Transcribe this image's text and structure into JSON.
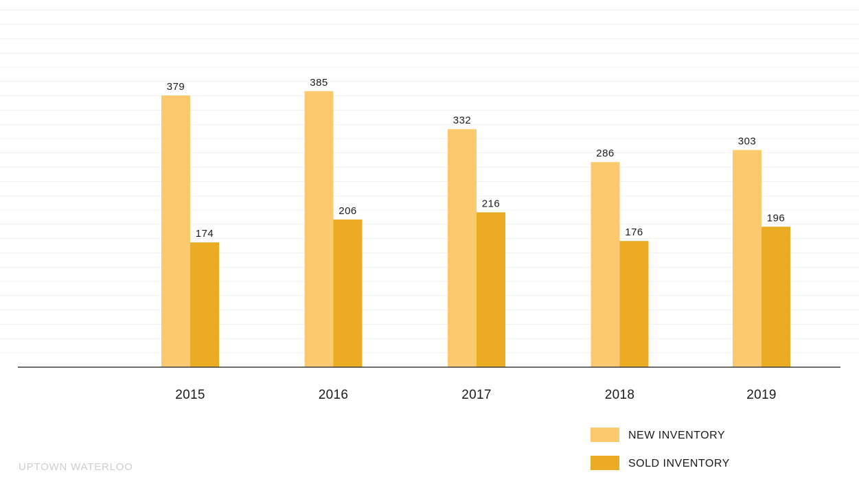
{
  "chart_data": {
    "type": "bar",
    "categories": [
      "2015",
      "2016",
      "2017",
      "2018",
      "2019"
    ],
    "series": [
      {
        "name": "NEW INVENTORY",
        "values": [
          379,
          385,
          332,
          286,
          303
        ],
        "color": "#fdc96f"
      },
      {
        "name": "SOLD INVENTORY",
        "values": [
          174,
          206,
          216,
          176,
          196
        ],
        "color": "#ebab22"
      }
    ],
    "title": "",
    "xlabel": "",
    "ylabel": "",
    "ylim": [
      0,
      500
    ],
    "grid": true,
    "legend_position": "bottom-right",
    "data_labels": true
  },
  "footer": {
    "watermark": "UPTOWN WATERLOO"
  },
  "colors": {
    "grid": "#f1f1f1",
    "baseline": "#3a3a3a",
    "watermark": "#cfcfcf"
  }
}
